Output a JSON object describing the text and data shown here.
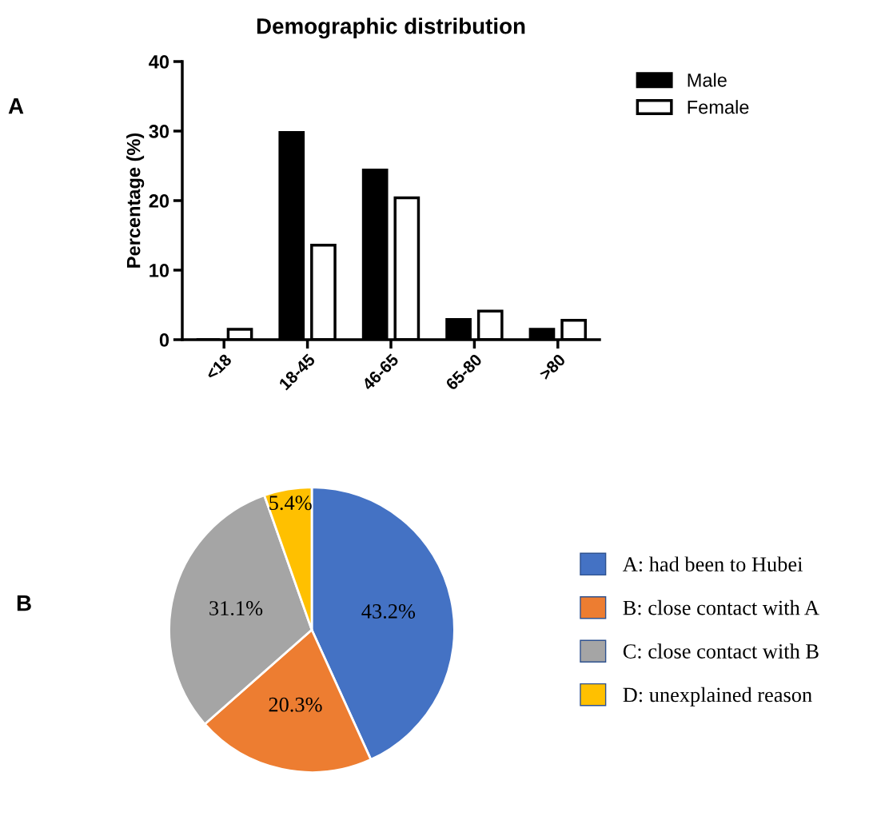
{
  "chart_data": [
    {
      "type": "bar",
      "title": "Demographic distribution",
      "ylabel": "Percentage (%)",
      "annotations": [
        "A"
      ],
      "categories": [
        "<18",
        "18-45",
        "46-65",
        "65-80",
        ">80"
      ],
      "series": [
        {
          "name": "Male",
          "color": "#000000",
          "values": [
            0,
            29.8,
            24.4,
            2.9,
            1.5
          ]
        },
        {
          "name": "Female",
          "color": "#ffffff",
          "values": [
            1.5,
            13.6,
            20.4,
            4.1,
            2.8
          ]
        }
      ],
      "ylim": [
        0,
        40
      ],
      "yticks": [
        0,
        10,
        20,
        30,
        40
      ],
      "grid": false,
      "legend": "top right"
    },
    {
      "type": "pie",
      "annotations": [
        "B"
      ],
      "categories": [
        "A: had been to Hubei",
        "B: close contact with A",
        "C: close contact with B",
        "D: unexplained reason"
      ],
      "values": [
        43.2,
        20.3,
        31.1,
        5.4
      ],
      "value_labels": [
        "43.2%",
        "20.3%",
        "31.1%",
        "5.4%"
      ],
      "colors": [
        "#4472c4",
        "#ed7d31",
        "#a5a5a5",
        "#ffc000"
      ],
      "legend": "right"
    }
  ]
}
